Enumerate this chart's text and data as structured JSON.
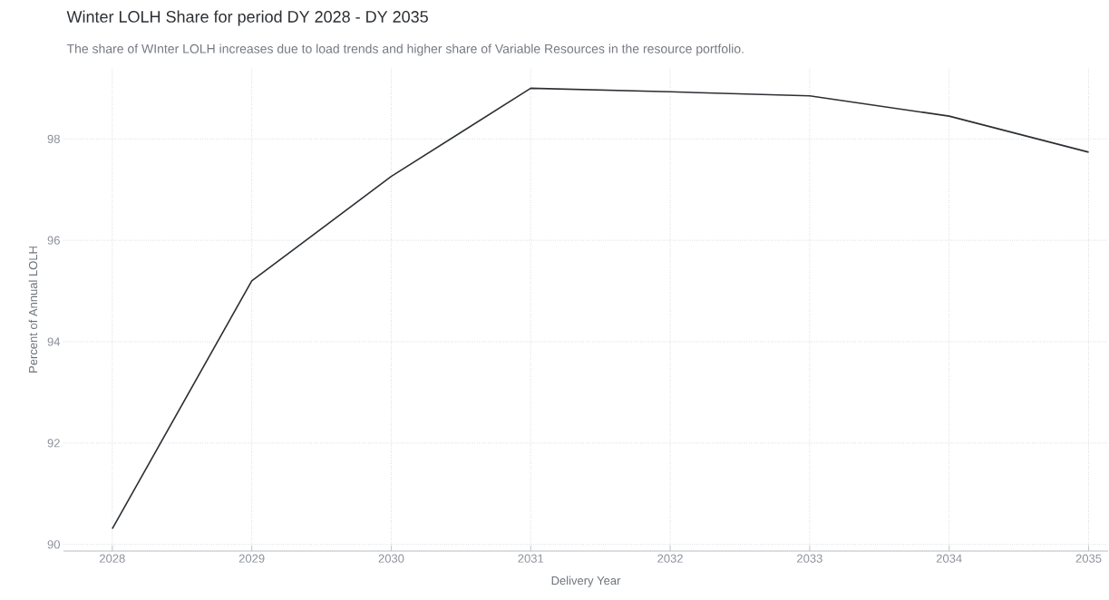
{
  "chart_data": {
    "type": "line",
    "title": "Winter LOLH Share for period DY 2028 - DY 2035",
    "subtitle": "The share of WInter LOLH increases due to load trends and higher share of Variable Resources in the resource portfolio.",
    "xlabel": "Delivery Year",
    "ylabel": "Percent of Annual LOLH",
    "x": [
      2028,
      2029,
      2030,
      2031,
      2032,
      2033,
      2034,
      2035
    ],
    "values": [
      90.31,
      95.2,
      97.26,
      99.0,
      98.93,
      98.85,
      98.45,
      97.74
    ],
    "color": "#2b2f33",
    "xlim": [
      2027.65,
      2035.14
    ],
    "ylim": [
      89.87,
      99.4
    ],
    "xticks": [
      2028,
      2029,
      2030,
      2031,
      2032,
      2033,
      2034,
      2035
    ],
    "yticks": [
      90,
      92,
      94,
      96,
      98
    ],
    "grid": true
  }
}
